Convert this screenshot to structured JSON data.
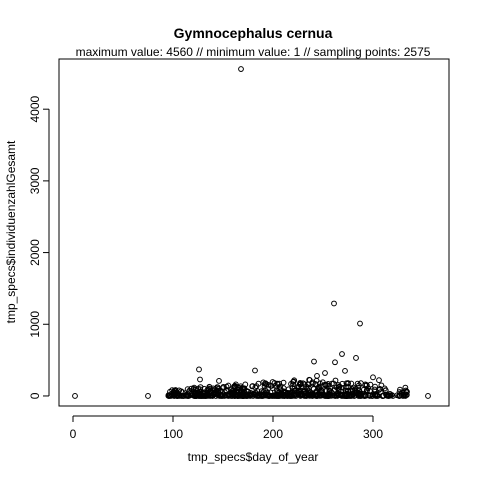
{
  "chart_data": {
    "type": "scatter",
    "title": "Gymnocephalus cernua",
    "subtitle": "maximum value: 4560  //  minimum value: 1  // sampling points: 2575",
    "xlabel": "tmp_specs$day_of_year",
    "ylabel": "tmp_specs$individuenzahlGesamt",
    "xlim": [
      -14,
      376
    ],
    "ylim": [
      -140,
      4700
    ],
    "x_ticks": [
      0,
      100,
      200,
      300
    ],
    "y_ticks": [
      0,
      1000,
      2000,
      3000,
      4000
    ],
    "grid": false,
    "legend": "none",
    "highlight_points": [
      {
        "x": 2,
        "y": 0
      },
      {
        "x": 75,
        "y": 0
      },
      {
        "x": 168,
        "y": 4560
      },
      {
        "x": 261,
        "y": 1290
      },
      {
        "x": 287,
        "y": 1010
      },
      {
        "x": 269,
        "y": 585
      },
      {
        "x": 283,
        "y": 530
      },
      {
        "x": 241,
        "y": 480
      },
      {
        "x": 262,
        "y": 470
      },
      {
        "x": 126,
        "y": 370
      },
      {
        "x": 182,
        "y": 355
      },
      {
        "x": 272,
        "y": 350
      },
      {
        "x": 252,
        "y": 320
      },
      {
        "x": 300,
        "y": 260
      },
      {
        "x": 306,
        "y": 220
      },
      {
        "x": 146,
        "y": 210
      },
      {
        "x": 127,
        "y": 230
      },
      {
        "x": 244,
        "y": 280
      },
      {
        "x": 355,
        "y": 0
      },
      {
        "x": 330,
        "y": 0
      }
    ],
    "cluster": {
      "x_range": [
        95,
        335
      ],
      "y_range": [
        0,
        200
      ],
      "count": 2555,
      "note": "dense mass of sampling points near zero"
    }
  }
}
